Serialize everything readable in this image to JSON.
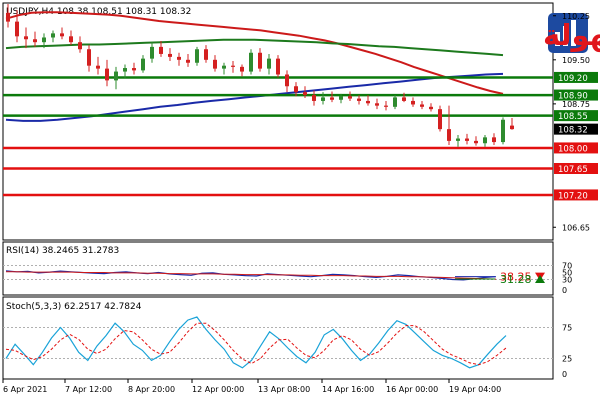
{
  "header": {
    "title": "USDJPY,H4 108.38 108.51 108.31 108.32",
    "logo_text": "التداول بسهولة"
  },
  "colors": {
    "bull": "#2e8b2e",
    "bear": "#d42020",
    "hline_red": "#e31010",
    "hline_green": "#0b7a0b",
    "ma_red": "#cc1a1a",
    "ma_blue": "#1a2aa8",
    "ma_green": "#1d7a1d",
    "price_box": "#000000",
    "logo_blue": "#1d4aa0",
    "logo_red": "#e0161c"
  },
  "chart_data": [
    {
      "type": "candlestick",
      "title": "USDJPY,H4",
      "ohlc_readout": {
        "open": 108.38,
        "high": 108.51,
        "low": 108.31,
        "close": 108.32
      },
      "ylim": [
        106.45,
        110.45
      ],
      "y_ticks": [
        "110.25",
        "109.50",
        "108.75",
        "106.65"
      ],
      "candles": [
        {
          "o": 110.3,
          "h": 110.45,
          "l": 110.05,
          "c": 110.15
        },
        {
          "o": 110.15,
          "h": 110.35,
          "l": 109.8,
          "c": 109.9
        },
        {
          "o": 109.9,
          "h": 110.05,
          "l": 109.7,
          "c": 109.85
        },
        {
          "o": 109.85,
          "h": 109.98,
          "l": 109.72,
          "c": 109.8
        },
        {
          "o": 109.8,
          "h": 109.95,
          "l": 109.7,
          "c": 109.88
        },
        {
          "o": 109.88,
          "h": 110.0,
          "l": 109.8,
          "c": 109.95
        },
        {
          "o": 109.95,
          "h": 110.05,
          "l": 109.85,
          "c": 109.9
        },
        {
          "o": 109.9,
          "h": 110.0,
          "l": 109.75,
          "c": 109.8
        },
        {
          "o": 109.8,
          "h": 109.9,
          "l": 109.62,
          "c": 109.68
        },
        {
          "o": 109.68,
          "h": 109.75,
          "l": 109.3,
          "c": 109.4
        },
        {
          "o": 109.4,
          "h": 109.55,
          "l": 109.25,
          "c": 109.35
        },
        {
          "o": 109.35,
          "h": 109.5,
          "l": 109.05,
          "c": 109.15
        },
        {
          "o": 109.15,
          "h": 109.38,
          "l": 109.0,
          "c": 109.3
        },
        {
          "o": 109.3,
          "h": 109.42,
          "l": 109.18,
          "c": 109.36
        },
        {
          "o": 109.36,
          "h": 109.45,
          "l": 109.25,
          "c": 109.32
        },
        {
          "o": 109.32,
          "h": 109.58,
          "l": 109.28,
          "c": 109.52
        },
        {
          "o": 109.52,
          "h": 109.8,
          "l": 109.45,
          "c": 109.72
        },
        {
          "o": 109.72,
          "h": 109.82,
          "l": 109.55,
          "c": 109.6
        },
        {
          "o": 109.6,
          "h": 109.7,
          "l": 109.48,
          "c": 109.55
        },
        {
          "o": 109.55,
          "h": 109.62,
          "l": 109.4,
          "c": 109.5
        },
        {
          "o": 109.5,
          "h": 109.6,
          "l": 109.38,
          "c": 109.45
        },
        {
          "o": 109.45,
          "h": 109.72,
          "l": 109.4,
          "c": 109.68
        },
        {
          "o": 109.68,
          "h": 109.75,
          "l": 109.45,
          "c": 109.5
        },
        {
          "o": 109.5,
          "h": 109.58,
          "l": 109.3,
          "c": 109.35
        },
        {
          "o": 109.35,
          "h": 109.45,
          "l": 109.25,
          "c": 109.4
        },
        {
          "o": 109.4,
          "h": 109.48,
          "l": 109.28,
          "c": 109.38
        },
        {
          "o": 109.38,
          "h": 109.42,
          "l": 109.22,
          "c": 109.3
        },
        {
          "o": 109.3,
          "h": 109.68,
          "l": 109.25,
          "c": 109.62
        },
        {
          "o": 109.62,
          "h": 109.7,
          "l": 109.3,
          "c": 109.35
        },
        {
          "o": 109.35,
          "h": 109.6,
          "l": 109.25,
          "c": 109.52
        },
        {
          "o": 109.52,
          "h": 109.58,
          "l": 109.2,
          "c": 109.25
        },
        {
          "o": 109.25,
          "h": 109.32,
          "l": 108.95,
          "c": 109.05
        },
        {
          "o": 109.05,
          "h": 109.12,
          "l": 108.88,
          "c": 108.95
        },
        {
          "o": 108.95,
          "h": 109.05,
          "l": 108.85,
          "c": 108.9
        },
        {
          "o": 108.9,
          "h": 108.98,
          "l": 108.72,
          "c": 108.8
        },
        {
          "o": 108.8,
          "h": 108.95,
          "l": 108.74,
          "c": 108.86
        },
        {
          "o": 108.86,
          "h": 108.96,
          "l": 108.78,
          "c": 108.82
        },
        {
          "o": 108.82,
          "h": 108.92,
          "l": 108.76,
          "c": 108.88
        },
        {
          "o": 108.88,
          "h": 108.96,
          "l": 108.8,
          "c": 108.84
        },
        {
          "o": 108.84,
          "h": 108.9,
          "l": 108.74,
          "c": 108.8
        },
        {
          "o": 108.8,
          "h": 108.9,
          "l": 108.72,
          "c": 108.76
        },
        {
          "o": 108.76,
          "h": 108.84,
          "l": 108.66,
          "c": 108.72
        },
        {
          "o": 108.72,
          "h": 108.8,
          "l": 108.64,
          "c": 108.7
        },
        {
          "o": 108.7,
          "h": 108.9,
          "l": 108.66,
          "c": 108.86
        },
        {
          "o": 108.86,
          "h": 108.94,
          "l": 108.78,
          "c": 108.8
        },
        {
          "o": 108.8,
          "h": 108.86,
          "l": 108.7,
          "c": 108.74
        },
        {
          "o": 108.74,
          "h": 108.8,
          "l": 108.66,
          "c": 108.7
        },
        {
          "o": 108.7,
          "h": 108.76,
          "l": 108.62,
          "c": 108.66
        },
        {
          "o": 108.66,
          "h": 108.72,
          "l": 108.28,
          "c": 108.32
        },
        {
          "o": 108.32,
          "h": 108.72,
          "l": 108.05,
          "c": 108.12
        },
        {
          "o": 108.12,
          "h": 108.22,
          "l": 108.02,
          "c": 108.16
        },
        {
          "o": 108.16,
          "h": 108.24,
          "l": 108.06,
          "c": 108.12
        },
        {
          "o": 108.12,
          "h": 108.2,
          "l": 108.04,
          "c": 108.08
        },
        {
          "o": 108.08,
          "h": 108.22,
          "l": 108.02,
          "c": 108.18
        },
        {
          "o": 108.18,
          "h": 108.25,
          "l": 108.05,
          "c": 108.1
        },
        {
          "o": 108.1,
          "h": 108.52,
          "l": 108.06,
          "c": 108.48
        },
        {
          "o": 108.38,
          "h": 108.51,
          "l": 108.31,
          "c": 108.32
        }
      ],
      "moving_averages": [
        {
          "color": "red",
          "values": [
            110.2,
            110.26,
            110.3,
            110.31,
            110.31,
            110.3,
            110.29,
            110.28,
            110.27,
            110.25,
            110.22,
            110.19,
            110.16,
            110.14,
            110.12,
            110.1,
            110.08,
            110.06,
            110.04,
            110.02,
            110.0,
            109.97,
            109.94,
            109.91,
            109.87,
            109.83,
            109.78,
            109.72,
            109.66,
            109.6,
            109.53,
            109.46,
            109.38,
            109.31,
            109.24,
            109.17,
            109.1,
            109.03,
            108.97,
            108.92
          ]
        },
        {
          "color": "blue",
          "values": [
            108.48,
            108.46,
            108.46,
            108.48,
            108.51,
            108.54,
            108.58,
            108.62,
            108.66,
            108.7,
            108.73,
            108.77,
            108.8,
            108.83,
            108.86,
            108.89,
            108.92,
            108.95,
            108.98,
            109.01,
            109.04,
            109.07,
            109.1,
            109.13,
            109.16,
            109.19,
            109.21,
            109.23,
            109.25,
            109.26
          ]
        },
        {
          "color": "green",
          "values": [
            109.7,
            109.72,
            109.73,
            109.74,
            109.75,
            109.76,
            109.76,
            109.77,
            109.78,
            109.79,
            109.8,
            109.81,
            109.82,
            109.83,
            109.84,
            109.84,
            109.84,
            109.83,
            109.82,
            109.81,
            109.8,
            109.78,
            109.77,
            109.75,
            109.73,
            109.72,
            109.7,
            109.68,
            109.66,
            109.64,
            109.62,
            109.6,
            109.58
          ]
        }
      ],
      "levels": [
        {
          "value": 109.2,
          "label": "109.20",
          "color": "green"
        },
        {
          "value": 108.9,
          "label": "108.90",
          "color": "green"
        },
        {
          "value": 108.55,
          "label": "108.55",
          "color": "green"
        },
        {
          "value": 108.32,
          "label": "108.32",
          "color": "black"
        },
        {
          "value": 108.0,
          "label": "108.00",
          "color": "red"
        },
        {
          "value": 107.65,
          "label": "107.65",
          "color": "red"
        },
        {
          "value": 107.2,
          "label": "107.20",
          "color": "red"
        }
      ]
    },
    {
      "type": "line",
      "title": "RSI(14) 38.2465 31.2783",
      "ylim": [
        0,
        100
      ],
      "y_ticks": [
        "70",
        "50",
        "30",
        "0"
      ],
      "rsi": [
        55,
        52,
        53,
        49,
        51,
        54,
        52,
        50,
        48,
        47,
        50,
        52,
        49,
        47,
        50,
        46,
        44,
        42,
        48,
        49,
        45,
        43,
        41,
        40,
        46,
        44,
        42,
        40,
        38,
        41,
        45,
        43,
        41,
        38,
        36,
        39,
        43,
        41,
        38,
        36,
        33,
        30,
        29,
        32,
        36,
        38
      ],
      "signal": [
        52,
        52,
        51,
        51,
        51,
        51,
        51,
        50,
        50,
        50,
        49,
        49,
        49,
        48,
        48,
        47,
        47,
        46,
        46,
        46,
        45,
        45,
        44,
        44,
        44,
        43,
        43,
        42,
        42,
        41,
        41,
        41,
        40,
        40,
        39,
        39,
        39,
        38,
        38,
        37,
        36,
        35,
        34,
        33,
        32,
        31
      ],
      "markers": [
        {
          "label": "38.25",
          "value": 38.25,
          "color": "red",
          "arrow": "down"
        },
        {
          "label": "31.28",
          "value": 31.28,
          "color": "green",
          "arrow": "up"
        }
      ]
    },
    {
      "type": "line",
      "title": "Stoch(5,3,3) 62.2517 42.7824",
      "ylim": [
        0,
        100
      ],
      "y_ticks": [
        "75",
        "25",
        "0"
      ],
      "main": [
        25,
        48,
        32,
        15,
        35,
        58,
        75,
        58,
        35,
        22,
        45,
        62,
        82,
        68,
        48,
        38,
        22,
        30,
        52,
        72,
        87,
        92,
        72,
        55,
        40,
        18,
        10,
        22,
        45,
        68,
        57,
        42,
        28,
        18,
        35,
        63,
        72,
        57,
        38,
        22,
        32,
        50,
        70,
        86,
        80,
        66,
        52,
        38,
        30,
        25,
        18,
        10,
        15,
        32,
        48,
        62
      ],
      "signal": [
        40,
        38,
        30,
        23,
        28,
        40,
        55,
        64,
        56,
        40,
        33,
        40,
        57,
        70,
        68,
        55,
        40,
        32,
        35,
        50,
        68,
        82,
        82,
        70,
        55,
        38,
        24,
        17,
        25,
        42,
        55,
        56,
        42,
        30,
        26,
        38,
        55,
        62,
        55,
        40,
        30,
        36,
        50,
        66,
        78,
        78,
        68,
        54,
        40,
        31,
        25,
        18,
        15,
        20,
        30,
        42
      ]
    }
  ],
  "x_axis": {
    "labels": [
      "6 Apr 2021",
      "7 Apr 12:00",
      "8 Apr 20:00",
      "12 Apr 00:00",
      "13 Apr 08:00",
      "14 Apr 16:00",
      "16 Apr 00:00",
      "19 Apr 04:00"
    ]
  }
}
